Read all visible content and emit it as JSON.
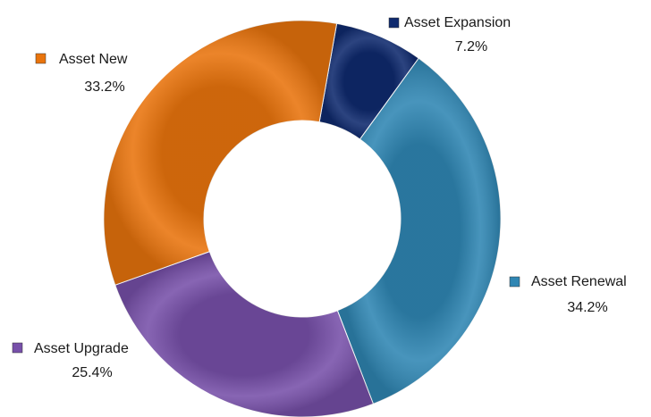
{
  "chart_data": {
    "type": "donut",
    "categories": [
      "Asset Expansion",
      "Asset Renewal",
      "Asset Upgrade",
      "Asset New"
    ],
    "values": [
      7.2,
      34.2,
      25.4,
      33.2
    ],
    "value_labels": [
      "7.2%",
      "34.2%",
      "25.4%",
      "33.2%"
    ],
    "colors": [
      "#0f2a6e",
      "#2f86b3",
      "#7750a9",
      "#e9740d"
    ]
  }
}
